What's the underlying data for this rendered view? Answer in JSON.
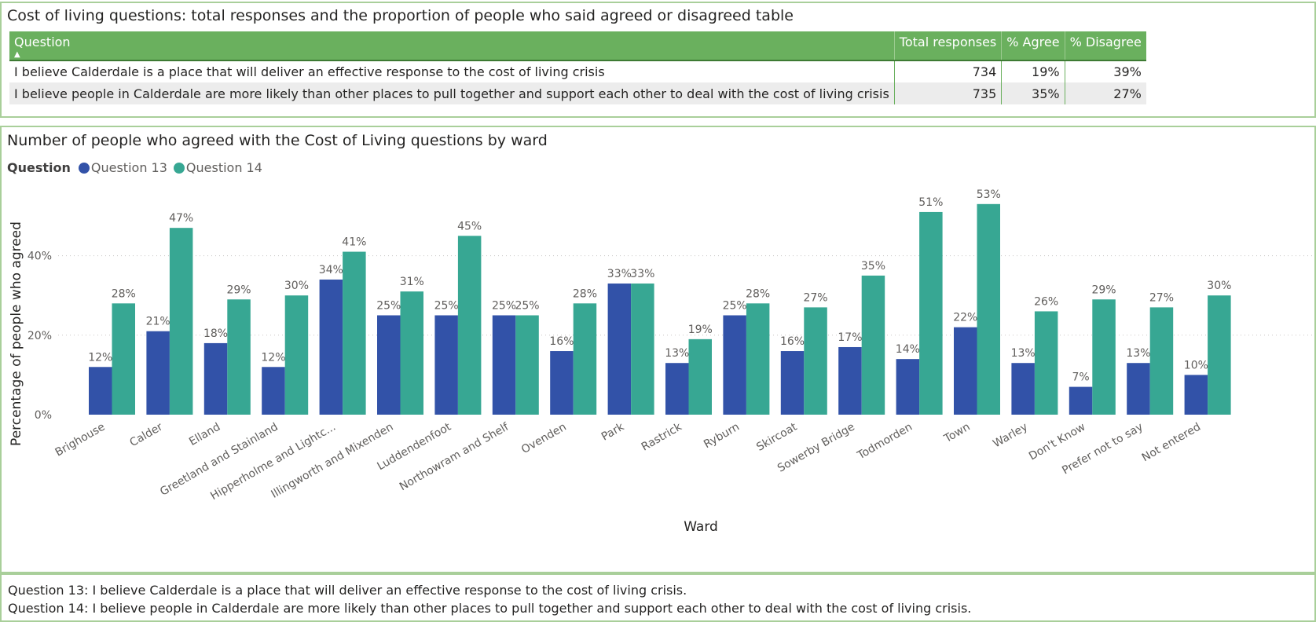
{
  "table": {
    "title": "Cost of living questions: total responses and the proportion of people who said agreed or disagreed table",
    "headers": [
      "Question",
      "Total responses",
      "% Agree",
      "% Disagree"
    ],
    "sort_indicator": "▲",
    "rows": [
      [
        "I believe Calderdale is a place that will deliver an effective response to the cost of living crisis",
        "734",
        "19%",
        "39%"
      ],
      [
        "I believe people in Calderdale are more likely than other places to pull together and support each other to deal with the cost of living crisis",
        "735",
        "35%",
        "27%"
      ]
    ],
    "header_color": "#6ab05e"
  },
  "chart": {
    "legend_title": "Question",
    "legend": [
      {
        "name": "Question 13",
        "color": "#3252a8"
      },
      {
        "name": "Question 14",
        "color": "#37a793"
      }
    ]
  },
  "chart_data": {
    "type": "bar",
    "title": "Number of people who agreed with the Cost of Living questions by ward",
    "xlabel": "Ward",
    "ylabel": "Percentage of people who agreed",
    "ylim": [
      0,
      60
    ],
    "yticks": [
      0,
      20,
      40
    ],
    "ytick_labels": [
      "0%",
      "20%",
      "40%"
    ],
    "grid": true,
    "legend_position": "top-left",
    "categories": [
      "Brighouse",
      "Calder",
      "Elland",
      "Greetland and Stainland",
      "Hipperholme and Lightc...",
      "Illingworth and Mixenden",
      "Luddendenfoot",
      "Northowram and Shelf",
      "Ovenden",
      "Park",
      "Rastrick",
      "Ryburn",
      "Skircoat",
      "Sowerby Bridge",
      "Todmorden",
      "Town",
      "Warley",
      "Don't Know",
      "Prefer not to say",
      "Not entered"
    ],
    "series": [
      {
        "name": "Question 13",
        "color": "#3252a8",
        "values": [
          12,
          21,
          18,
          12,
          34,
          25,
          25,
          25,
          16,
          33,
          13,
          25,
          16,
          17,
          14,
          22,
          13,
          7,
          13,
          10
        ],
        "labels": [
          "12%",
          "21%",
          "18%",
          "12%",
          "34%",
          "25%",
          "25%",
          "25%",
          "16%",
          "33%",
          "13%",
          "25%",
          "16%",
          "17%",
          "14%",
          "22%",
          "13%",
          "7%",
          "13%",
          "10%"
        ]
      },
      {
        "name": "Question 14",
        "color": "#37a793",
        "values": [
          28,
          47,
          29,
          30,
          41,
          31,
          45,
          25,
          28,
          33,
          19,
          28,
          27,
          35,
          51,
          53,
          26,
          29,
          27,
          30
        ],
        "labels": [
          "28%",
          "47%",
          "29%",
          "30%",
          "41%",
          "31%",
          "45%",
          "25%",
          "28%",
          "33%",
          "19%",
          "28%",
          "27%",
          "35%",
          "51%",
          "53%",
          "26%",
          "29%",
          "27%",
          "30%"
        ]
      }
    ]
  },
  "notes": {
    "q13": "Question 13: I believe Calderdale is a place that will deliver an effective response to the cost of living crisis.",
    "q14": "Question 14: I believe people in Calderdale are more likely than other places to pull together and support each other to deal with the cost of living crisis."
  }
}
